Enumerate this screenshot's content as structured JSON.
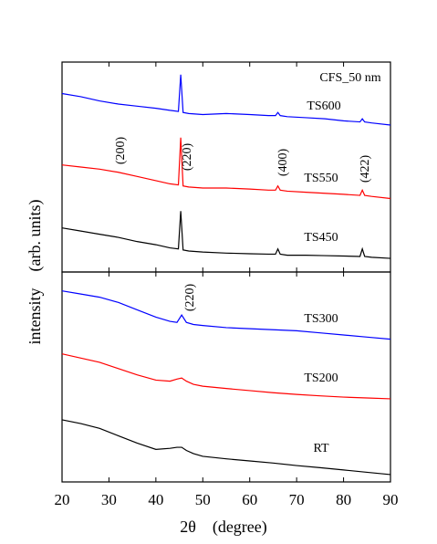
{
  "chart_data": [
    {
      "type": "line",
      "annotations": [
        "CFS_50 nm",
        "(200)",
        "(220)",
        "(400)",
        "(422)"
      ],
      "x": [
        20,
        24,
        28,
        32,
        36,
        40,
        43,
        44.8,
        45.3,
        45.8,
        47,
        50,
        55,
        60,
        64,
        65.5,
        66,
        66.5,
        68,
        72,
        76,
        80,
        83.5,
        84,
        84.5,
        86,
        90
      ],
      "series": [
        {
          "name": "TS600",
          "color": "#0000ff",
          "values": [
            85,
            83.5,
            81.5,
            80,
            79,
            78,
            77,
            76.5,
            94,
            76,
            75.5,
            75,
            75.5,
            75,
            74.5,
            74.5,
            76,
            74.5,
            74,
            73.5,
            73,
            72,
            71.5,
            73,
            71.5,
            71,
            70
          ]
        },
        {
          "name": "TS550",
          "color": "#ff0000",
          "values": [
            51,
            50,
            49,
            47.5,
            45.5,
            43.5,
            42,
            41.5,
            64,
            41,
            40.5,
            40,
            40,
            39.5,
            39,
            39,
            41,
            39,
            38.5,
            38,
            37.5,
            37,
            36.5,
            39,
            36.5,
            36,
            35
          ]
        },
        {
          "name": "TS450",
          "color": "#000000",
          "values": [
            21,
            19.5,
            18,
            16.5,
            14.5,
            13,
            11.5,
            11,
            29,
            10.5,
            10,
            9.5,
            9,
            8.7,
            8.5,
            8.5,
            11,
            8.5,
            8,
            8,
            7.8,
            7.6,
            7.4,
            11,
            7.4,
            7,
            6.5
          ]
        }
      ],
      "xlim": [
        20,
        90
      ],
      "ylim": [
        0,
        100
      ],
      "xticks": [
        20,
        30,
        40,
        50,
        60,
        70,
        80,
        90
      ]
    },
    {
      "type": "line",
      "annotations": [
        "(220)"
      ],
      "xlabel": "2θ    (degree)",
      "ylabel": "intensity    (arb. units)",
      "x": [
        20,
        24,
        28,
        32,
        36,
        40,
        43,
        44.5,
        45.5,
        46.5,
        48,
        50,
        55,
        60,
        65,
        70,
        75,
        80,
        85,
        90
      ],
      "series": [
        {
          "name": "TS300",
          "color": "#0000ff",
          "values": [
            91,
            89.5,
            88,
            85.5,
            82,
            78.5,
            76.5,
            76,
            79.5,
            76,
            75,
            74.5,
            73.5,
            73,
            72.5,
            72,
            71,
            70,
            69,
            68
          ]
        },
        {
          "name": "TS200",
          "color": "#ff0000",
          "values": [
            61,
            59,
            57,
            54,
            51,
            48.5,
            48,
            49,
            49.5,
            48,
            46.5,
            45.6,
            44.5,
            43.5,
            42.5,
            41.7,
            41,
            40.4,
            40,
            39.6
          ]
        },
        {
          "name": "RT",
          "color": "#000000",
          "values": [
            29.6,
            27.8,
            25.5,
            22,
            18.5,
            15.5,
            16,
            16.5,
            16.5,
            15,
            13.5,
            12.2,
            11,
            10,
            9,
            7.8,
            6.8,
            5.7,
            4.6,
            3.5
          ]
        }
      ],
      "xlim": [
        20,
        90
      ],
      "ylim": [
        0,
        100
      ],
      "xticks": [
        20,
        30,
        40,
        50,
        60,
        70,
        80,
        90
      ]
    }
  ]
}
